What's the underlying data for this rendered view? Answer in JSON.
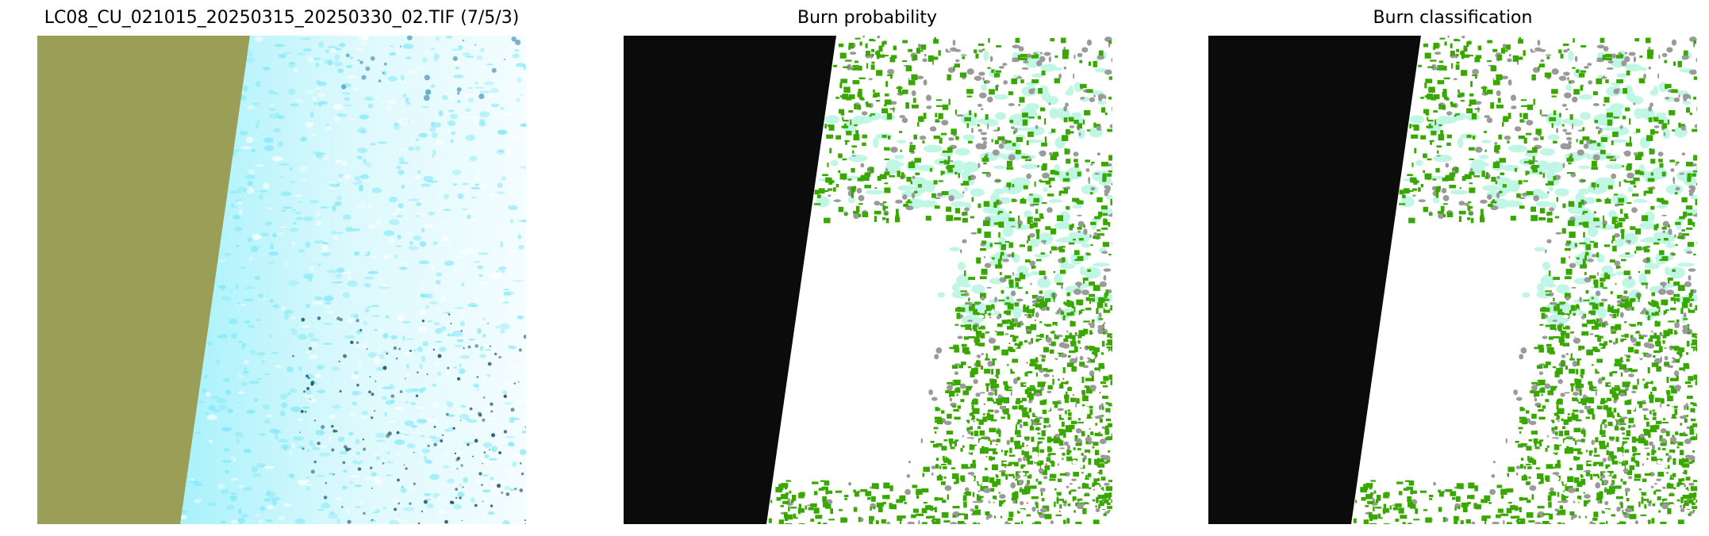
{
  "chart_data": [
    {
      "type": "image",
      "title": "LC08_CU_021015_20250315_20250330_02.TIF (7/5/3)",
      "colors": {
        "nodata": "#9a9e57",
        "snow": "#e8fbff",
        "cyan": "#7fe8f8",
        "dark": "#1f4f5f"
      }
    },
    {
      "type": "image",
      "title": "Burn probability",
      "colors": {
        "nodata": "#0b0b0b",
        "background": "#ffffff",
        "burn": "#38a800",
        "mint": "#c0f7e4",
        "gray": "#9a9a9a",
        "high": "#e00000"
      }
    },
    {
      "type": "image",
      "title": "Burn classification",
      "colors": {
        "nodata": "#0b0b0b",
        "background": "#ffffff",
        "burn": "#38a800",
        "mint": "#c0f7e4",
        "gray": "#9a9a9a"
      }
    }
  ]
}
